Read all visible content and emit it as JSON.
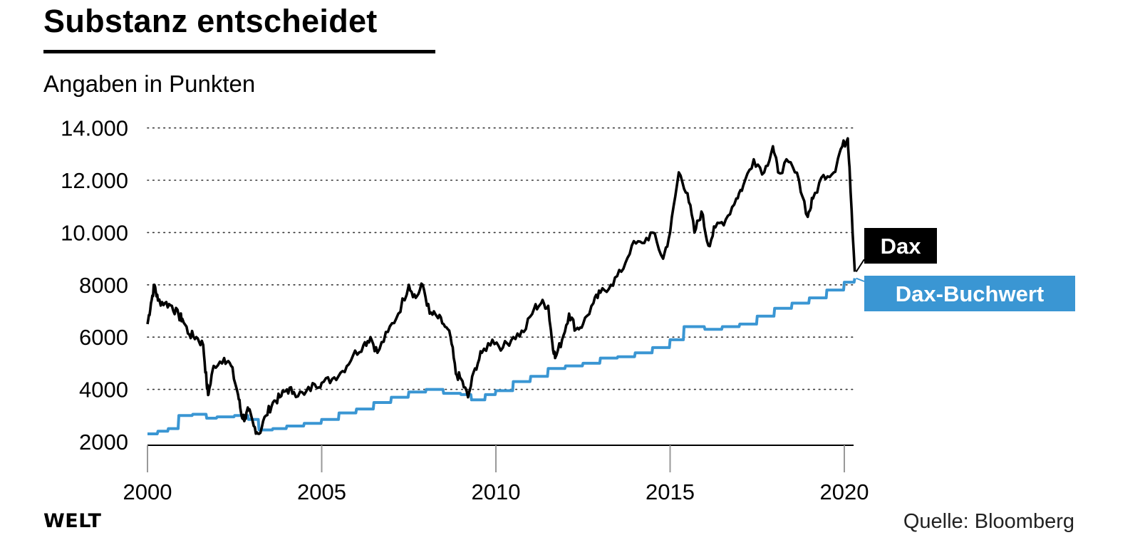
{
  "header": {
    "title": "Substanz entscheidet",
    "subtitle": "Angaben in Punkten"
  },
  "footer": {
    "logo": "WELT",
    "source": "Quelle: Bloomberg"
  },
  "colors": {
    "dax": "#000000",
    "buchwert": "#3a96d3",
    "grid": "#333333"
  },
  "chart_data": {
    "type": "line",
    "title": "Substanz entscheidet",
    "ylabel": "Angaben in Punkten",
    "xlabel": "",
    "xlim": [
      2000,
      2020.4
    ],
    "ylim": [
      2000,
      14000
    ],
    "grid": "horizontal dotted",
    "x_ticks": [
      2000,
      2005,
      2010,
      2015,
      2020
    ],
    "x_tick_labels": [
      "2000",
      "2005",
      "2010",
      "2015",
      "2020"
    ],
    "y_ticks": [
      2000,
      4000,
      6000,
      8000,
      10000,
      12000,
      14000
    ],
    "y_tick_labels": [
      "2000",
      "4000",
      "6000",
      "8000",
      "10.000",
      "12.000",
      "14.000"
    ],
    "series": [
      {
        "name": "Dax",
        "label": "Dax",
        "color": "#000000",
        "points": [
          [
            2000.0,
            6500
          ],
          [
            2000.1,
            7300
          ],
          [
            2000.2,
            8000
          ],
          [
            2000.3,
            7400
          ],
          [
            2000.5,
            7300
          ],
          [
            2000.7,
            7200
          ],
          [
            2000.9,
            6800
          ],
          [
            2001.0,
            6700
          ],
          [
            2001.2,
            6100
          ],
          [
            2001.4,
            6000
          ],
          [
            2001.6,
            5700
          ],
          [
            2001.7,
            4200
          ],
          [
            2001.75,
            3800
          ],
          [
            2001.9,
            4900
          ],
          [
            2002.2,
            5200
          ],
          [
            2002.4,
            4900
          ],
          [
            2002.6,
            3800
          ],
          [
            2002.7,
            3000
          ],
          [
            2002.8,
            2900
          ],
          [
            2002.9,
            3200
          ],
          [
            2003.05,
            2600
          ],
          [
            2003.2,
            2300
          ],
          [
            2003.4,
            3000
          ],
          [
            2003.6,
            3500
          ],
          [
            2003.8,
            3700
          ],
          [
            2004.0,
            4000
          ],
          [
            2004.2,
            3900
          ],
          [
            2004.5,
            3800
          ],
          [
            2004.8,
            4200
          ],
          [
            2005.0,
            4250
          ],
          [
            2005.3,
            4400
          ],
          [
            2005.6,
            4700
          ],
          [
            2005.9,
            5300
          ],
          [
            2006.2,
            5700
          ],
          [
            2006.4,
            6000
          ],
          [
            2006.6,
            5400
          ],
          [
            2006.9,
            6200
          ],
          [
            2007.2,
            6900
          ],
          [
            2007.5,
            8000
          ],
          [
            2007.7,
            7500
          ],
          [
            2007.9,
            8000
          ],
          [
            2008.1,
            6900
          ],
          [
            2008.3,
            6800
          ],
          [
            2008.5,
            6500
          ],
          [
            2008.7,
            6000
          ],
          [
            2008.85,
            4600
          ],
          [
            2009.0,
            4400
          ],
          [
            2009.2,
            3700
          ],
          [
            2009.4,
            4800
          ],
          [
            2009.6,
            5400
          ],
          [
            2009.9,
            5900
          ],
          [
            2010.2,
            5600
          ],
          [
            2010.5,
            6000
          ],
          [
            2010.8,
            6200
          ],
          [
            2011.1,
            7100
          ],
          [
            2011.3,
            7300
          ],
          [
            2011.5,
            7200
          ],
          [
            2011.6,
            6000
          ],
          [
            2011.7,
            5200
          ],
          [
            2011.9,
            5900
          ],
          [
            2012.1,
            6900
          ],
          [
            2012.3,
            6300
          ],
          [
            2012.5,
            6500
          ],
          [
            2012.8,
            7300
          ],
          [
            2013.0,
            7700
          ],
          [
            2013.3,
            8000
          ],
          [
            2013.6,
            8500
          ],
          [
            2013.9,
            9500
          ],
          [
            2014.2,
            9600
          ],
          [
            2014.5,
            10000
          ],
          [
            2014.8,
            9000
          ],
          [
            2015.0,
            10000
          ],
          [
            2015.25,
            12300
          ],
          [
            2015.5,
            11500
          ],
          [
            2015.7,
            10000
          ],
          [
            2015.9,
            10800
          ],
          [
            2016.1,
            9500
          ],
          [
            2016.3,
            10200
          ],
          [
            2016.6,
            10500
          ],
          [
            2016.9,
            11300
          ],
          [
            2017.1,
            11800
          ],
          [
            2017.4,
            12800
          ],
          [
            2017.7,
            12300
          ],
          [
            2017.95,
            13300
          ],
          [
            2018.1,
            12300
          ],
          [
            2018.4,
            12700
          ],
          [
            2018.7,
            12000
          ],
          [
            2018.95,
            10600
          ],
          [
            2019.1,
            11300
          ],
          [
            2019.4,
            12200
          ],
          [
            2019.7,
            12300
          ],
          [
            2019.9,
            13200
          ],
          [
            2020.1,
            13600
          ],
          [
            2020.15,
            12500
          ],
          [
            2020.3,
            8500
          ]
        ]
      },
      {
        "name": "Dax-Buchwert",
        "label": "Dax-Buchwert",
        "color": "#3a96d3",
        "points": [
          [
            2000.0,
            2300
          ],
          [
            2000.3,
            2400
          ],
          [
            2000.6,
            2500
          ],
          [
            2000.9,
            3000
          ],
          [
            2001.3,
            3050
          ],
          [
            2001.7,
            2900
          ],
          [
            2002.0,
            2950
          ],
          [
            2002.5,
            3000
          ],
          [
            2002.9,
            2850
          ],
          [
            2003.2,
            2450
          ],
          [
            2003.6,
            2500
          ],
          [
            2004.0,
            2600
          ],
          [
            2004.5,
            2700
          ],
          [
            2005.0,
            2850
          ],
          [
            2005.5,
            3100
          ],
          [
            2006.0,
            3250
          ],
          [
            2006.5,
            3500
          ],
          [
            2007.0,
            3700
          ],
          [
            2007.5,
            3900
          ],
          [
            2008.0,
            4000
          ],
          [
            2008.5,
            3850
          ],
          [
            2009.0,
            3800
          ],
          [
            2009.3,
            3600
          ],
          [
            2009.7,
            3800
          ],
          [
            2010.0,
            3950
          ],
          [
            2010.5,
            4300
          ],
          [
            2011.0,
            4500
          ],
          [
            2011.5,
            4800
          ],
          [
            2012.0,
            4900
          ],
          [
            2012.5,
            5000
          ],
          [
            2013.0,
            5200
          ],
          [
            2013.5,
            5250
          ],
          [
            2014.0,
            5400
          ],
          [
            2014.5,
            5600
          ],
          [
            2015.0,
            5900
          ],
          [
            2015.4,
            6400
          ],
          [
            2016.0,
            6300
          ],
          [
            2016.5,
            6400
          ],
          [
            2017.0,
            6500
          ],
          [
            2017.5,
            6800
          ],
          [
            2018.0,
            7100
          ],
          [
            2018.5,
            7300
          ],
          [
            2019.0,
            7500
          ],
          [
            2019.5,
            7800
          ],
          [
            2020.0,
            8100
          ],
          [
            2020.3,
            8250
          ]
        ]
      }
    ]
  }
}
